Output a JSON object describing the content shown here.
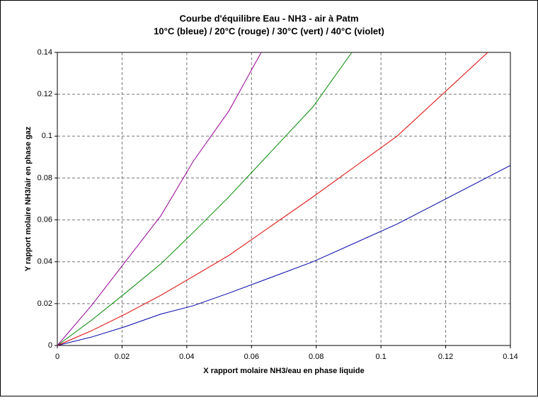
{
  "chart_data": {
    "type": "line",
    "title": "Courbe d'équilibre Eau - NH3 - air à Patm",
    "subtitle": "10°C (bleue) / 20°C (rouge) / 30°C (vert) / 40°C (violet)",
    "x_label": "X rapport molaire NH3/eau en phase liquide",
    "y_label": "Y rapport molaire NH3/air en phase gaz",
    "xlim": [
      0,
      0.14
    ],
    "ylim": [
      0,
      0.14
    ],
    "xticks": [
      0,
      0.02,
      0.04,
      0.06,
      0.08,
      0.1,
      0.12,
      0.14
    ],
    "yticks": [
      0,
      0.02,
      0.04,
      0.06,
      0.08,
      0.1,
      0.12,
      0.14
    ],
    "grid": true,
    "series": [
      {
        "color": "#0000aa",
        "x": [
          0,
          0.0105,
          0.021,
          0.032,
          0.042,
          0.053,
          0.079,
          0.105,
          0.14
        ],
        "values": [
          0,
          0.004,
          0.009,
          0.015,
          0.019,
          0.025,
          0.04,
          0.058,
          0.086
        ]
      },
      {
        "color": "#dd0000",
        "x": [
          0,
          0.0105,
          0.021,
          0.032,
          0.042,
          0.053,
          0.079,
          0.105,
          0.133
        ],
        "values": [
          0,
          0.007,
          0.015,
          0.024,
          0.033,
          0.043,
          0.071,
          0.1,
          0.14
        ]
      },
      {
        "color": "#008800",
        "x": [
          0,
          0.0105,
          0.021,
          0.032,
          0.042,
          0.053,
          0.079,
          0.091
        ],
        "values": [
          0,
          0.012,
          0.025,
          0.039,
          0.054,
          0.071,
          0.114,
          0.14
        ]
      },
      {
        "color": "#990099",
        "x": [
          0,
          0.0105,
          0.021,
          0.032,
          0.042,
          0.053,
          0.063
        ],
        "values": [
          0,
          0.019,
          0.04,
          0.062,
          0.088,
          0.112,
          0.14
        ]
      }
    ]
  }
}
